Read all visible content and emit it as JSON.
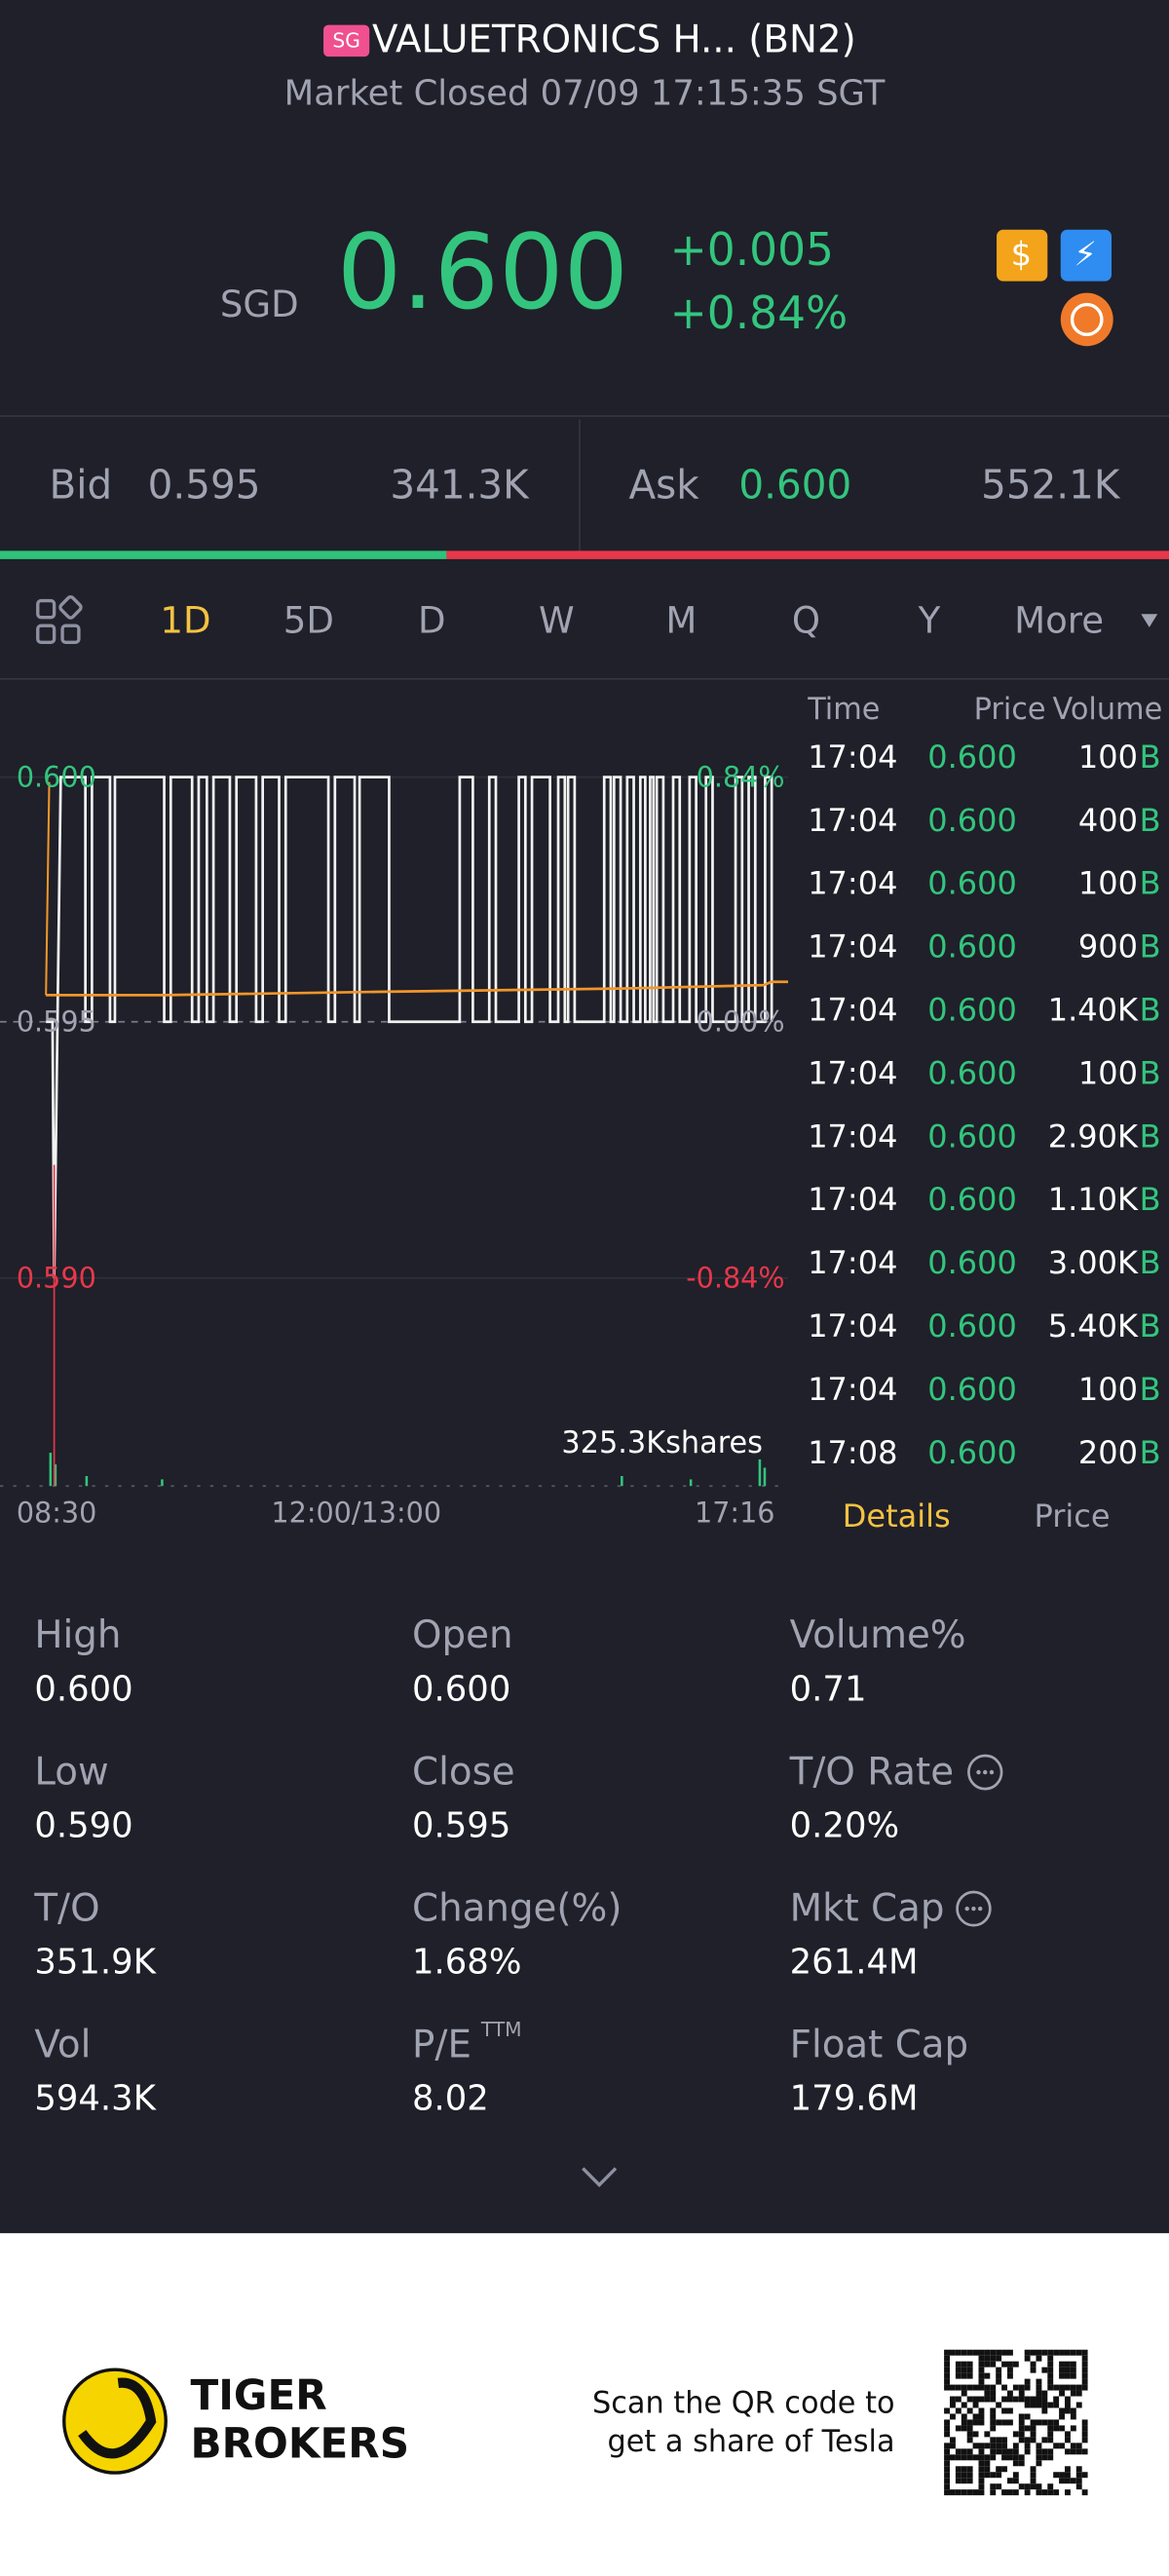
{
  "header": {
    "badge": "SG",
    "title": "VALUETRONICS H... (BN2)",
    "status": "Market Closed 07/09 17:15:35 SGT"
  },
  "quote": {
    "currency": "SGD",
    "price": "0.600",
    "change": "+0.005",
    "change_pct": "+0.84%"
  },
  "bid_ask": {
    "bid_label": "Bid",
    "bid": "0.595",
    "bid_size": "341.3K",
    "ask_label": "Ask",
    "ask": "0.600",
    "ask_size": "552.1K"
  },
  "tabs": [
    "1D",
    "5D",
    "D",
    "W",
    "M",
    "Q",
    "Y",
    "More"
  ],
  "chart": {
    "y_left": [
      "0.600",
      "0.595",
      "0.590"
    ],
    "y_right": [
      "0.84%",
      "0.00%",
      "-0.84%"
    ],
    "x_labels": [
      "08:30",
      "12:00/13:00",
      "17:16"
    ],
    "volume_label": "325.3Kshares"
  },
  "trades": {
    "columns": [
      "Time",
      "Price",
      "Volume"
    ],
    "rows": [
      [
        "17:04",
        "0.600",
        "100",
        "B"
      ],
      [
        "17:04",
        "0.600",
        "400",
        "B"
      ],
      [
        "17:04",
        "0.600",
        "100",
        "B"
      ],
      [
        "17:04",
        "0.600",
        "900",
        "B"
      ],
      [
        "17:04",
        "0.600",
        "1.40K",
        "B"
      ],
      [
        "17:04",
        "0.600",
        "100",
        "B"
      ],
      [
        "17:04",
        "0.600",
        "2.90K",
        "B"
      ],
      [
        "17:04",
        "0.600",
        "1.10K",
        "B"
      ],
      [
        "17:04",
        "0.600",
        "3.00K",
        "B"
      ],
      [
        "17:04",
        "0.600",
        "5.40K",
        "B"
      ],
      [
        "17:04",
        "0.600",
        "100",
        "B"
      ],
      [
        "17:08",
        "0.600",
        "200",
        "B"
      ]
    ],
    "tabs": [
      "Details",
      "Price"
    ]
  },
  "stats": [
    {
      "label": "High",
      "value": "0.600"
    },
    {
      "label": "Open",
      "value": "0.600"
    },
    {
      "label": "Volume%",
      "value": "0.71"
    },
    {
      "label": "Low",
      "value": "0.590"
    },
    {
      "label": "Close",
      "value": "0.595"
    },
    {
      "label": "T/O Rate",
      "value": "0.20%"
    },
    {
      "label": "T/O",
      "value": "351.9K"
    },
    {
      "label": "Change(%)",
      "value": "1.68%"
    },
    {
      "label": "Mkt Cap",
      "value": "261.4M"
    },
    {
      "label": "Vol",
      "value": "594.3K"
    },
    {
      "label": "P/E",
      "sup": "TTM",
      "value": "8.02"
    },
    {
      "label": "Float Cap",
      "value": "179.6M"
    }
  ],
  "footer": {
    "brand": [
      "TIGER",
      "BROKERS"
    ],
    "promo": [
      "Scan the QR code to",
      "get a share of Tesla"
    ]
  }
}
